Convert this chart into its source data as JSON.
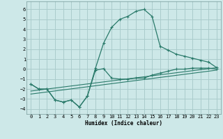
{
  "xlabel": "Humidex (Indice chaleur)",
  "xlim": [
    -0.5,
    23.5
  ],
  "ylim": [
    -4.5,
    6.8
  ],
  "xticks": [
    0,
    1,
    2,
    3,
    4,
    5,
    6,
    7,
    8,
    9,
    10,
    11,
    12,
    13,
    14,
    15,
    16,
    17,
    18,
    19,
    20,
    21,
    22,
    23
  ],
  "yticks": [
    -4,
    -3,
    -2,
    -1,
    0,
    1,
    2,
    3,
    4,
    5,
    6
  ],
  "background_color": "#cde8e8",
  "grid_color": "#aacccc",
  "line_color": "#2a7a6a",
  "curve_hump_x": [
    0,
    1,
    2,
    3,
    4,
    5,
    6,
    7,
    8,
    9,
    10,
    11,
    12,
    13,
    14,
    15,
    16,
    17,
    18,
    19,
    20,
    21,
    22,
    23
  ],
  "curve_hump_y": [
    -1.5,
    -2.0,
    -2.0,
    -3.1,
    -3.3,
    -3.1,
    -3.8,
    -2.7,
    0.1,
    2.6,
    4.2,
    5.0,
    5.3,
    5.8,
    6.0,
    5.3,
    2.3,
    1.9,
    1.5,
    1.3,
    1.1,
    0.9,
    0.7,
    0.15
  ],
  "curve_low_x": [
    0,
    1,
    2,
    3,
    4,
    5,
    6,
    7,
    8,
    9,
    10,
    11,
    12,
    13,
    14,
    15,
    16,
    17,
    18,
    19,
    20,
    21,
    22,
    23
  ],
  "curve_low_y": [
    -1.5,
    -2.0,
    -2.0,
    -3.1,
    -3.3,
    -3.1,
    -3.8,
    -2.7,
    -0.1,
    0.05,
    -0.9,
    -1.0,
    -1.0,
    -0.9,
    -0.9,
    -0.6,
    -0.4,
    -0.2,
    0.0,
    0.0,
    0.1,
    0.1,
    0.1,
    0.0
  ],
  "line1_x": [
    0,
    23
  ],
  "line1_y": [
    -2.2,
    0.15
  ],
  "line2_x": [
    0,
    23
  ],
  "line2_y": [
    -2.5,
    -0.1
  ]
}
